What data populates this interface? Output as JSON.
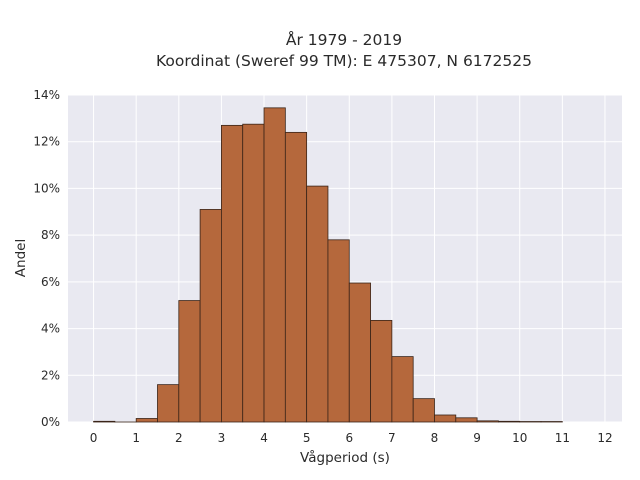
{
  "chart_data": {
    "type": "bar",
    "title": "År 1979 - 2019",
    "subtitle": "Koordinat (Sweref 99 TM): E 475307, N 6172525",
    "xlabel": "Vågperiod (s)",
    "ylabel": "Andel",
    "xlim": [
      -0.6,
      12.4
    ],
    "ylim": [
      0,
      14
    ],
    "x_ticks": [
      0,
      1,
      2,
      3,
      4,
      5,
      6,
      7,
      8,
      9,
      10,
      11,
      12
    ],
    "y_ticks": [
      0,
      2,
      4,
      6,
      8,
      10,
      12,
      14
    ],
    "y_tick_format": "percent",
    "bin_width": 0.5,
    "bins": [
      {
        "start": 0.0,
        "value": 0.03
      },
      {
        "start": 0.5,
        "value": 0.0
      },
      {
        "start": 1.0,
        "value": 0.15
      },
      {
        "start": 1.5,
        "value": 1.6
      },
      {
        "start": 2.0,
        "value": 5.2
      },
      {
        "start": 2.5,
        "value": 9.1
      },
      {
        "start": 3.0,
        "value": 12.7
      },
      {
        "start": 3.5,
        "value": 12.75
      },
      {
        "start": 4.0,
        "value": 13.45
      },
      {
        "start": 4.5,
        "value": 12.4
      },
      {
        "start": 5.0,
        "value": 10.1
      },
      {
        "start": 5.5,
        "value": 7.8
      },
      {
        "start": 6.0,
        "value": 5.95
      },
      {
        "start": 6.5,
        "value": 4.35
      },
      {
        "start": 7.0,
        "value": 2.8
      },
      {
        "start": 7.5,
        "value": 1.0
      },
      {
        "start": 8.0,
        "value": 0.3
      },
      {
        "start": 8.5,
        "value": 0.18
      },
      {
        "start": 9.0,
        "value": 0.05
      },
      {
        "start": 9.5,
        "value": 0.03
      },
      {
        "start": 10.0,
        "value": 0.02
      },
      {
        "start": 10.5,
        "value": 0.02
      }
    ],
    "grid": true,
    "bar_color": "#b5683c",
    "bar_edge_color": "#3a2418",
    "plot_background": "#e9e9f1",
    "grid_color": "#ffffff"
  }
}
